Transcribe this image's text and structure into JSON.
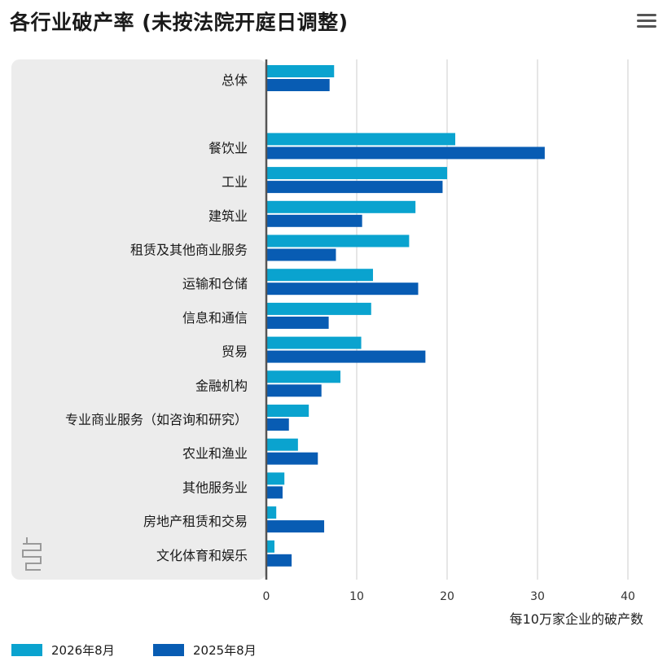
{
  "title": "各行业破产率 (未按法院开庭日调整)",
  "menu_icon": "hamburger-menu-icon",
  "logo_icon": "publisher-logo-icon",
  "colors": {
    "series_1": "#0aa3cf",
    "series_2": "#085cb3",
    "panel_bg": "#ececec",
    "grid": "#dddddd",
    "axis": "#555555"
  },
  "chart_data": {
    "type": "bar",
    "orientation": "horizontal",
    "categories": [
      "总体",
      "",
      "餐饮业",
      "工业",
      "建筑业",
      "租赁及其他商业服务",
      "运输和仓储",
      "信息和通信",
      "贸易",
      "金融机构",
      "专业商业服务（如咨询和研究）",
      "农业和渔业",
      "其他服务业",
      "房地产租赁和交易",
      "文化体育和娱乐"
    ],
    "series": [
      {
        "name": "2026年8月",
        "values": [
          7.5,
          null,
          20.9,
          20.0,
          16.5,
          15.8,
          11.8,
          11.6,
          10.5,
          8.2,
          4.7,
          3.5,
          2.0,
          1.1,
          0.9
        ]
      },
      {
        "name": "2025年8月",
        "values": [
          7.0,
          null,
          30.8,
          19.5,
          10.6,
          7.7,
          16.8,
          6.9,
          17.6,
          6.1,
          2.5,
          5.7,
          1.8,
          6.4,
          2.8
        ]
      }
    ],
    "xlabel": "每10万家企业的破产数",
    "ylabel": "",
    "xlim": [
      0,
      40
    ],
    "xticks": [
      0,
      10,
      20,
      30,
      40
    ],
    "grid": true,
    "legend_position": "bottom-left"
  }
}
